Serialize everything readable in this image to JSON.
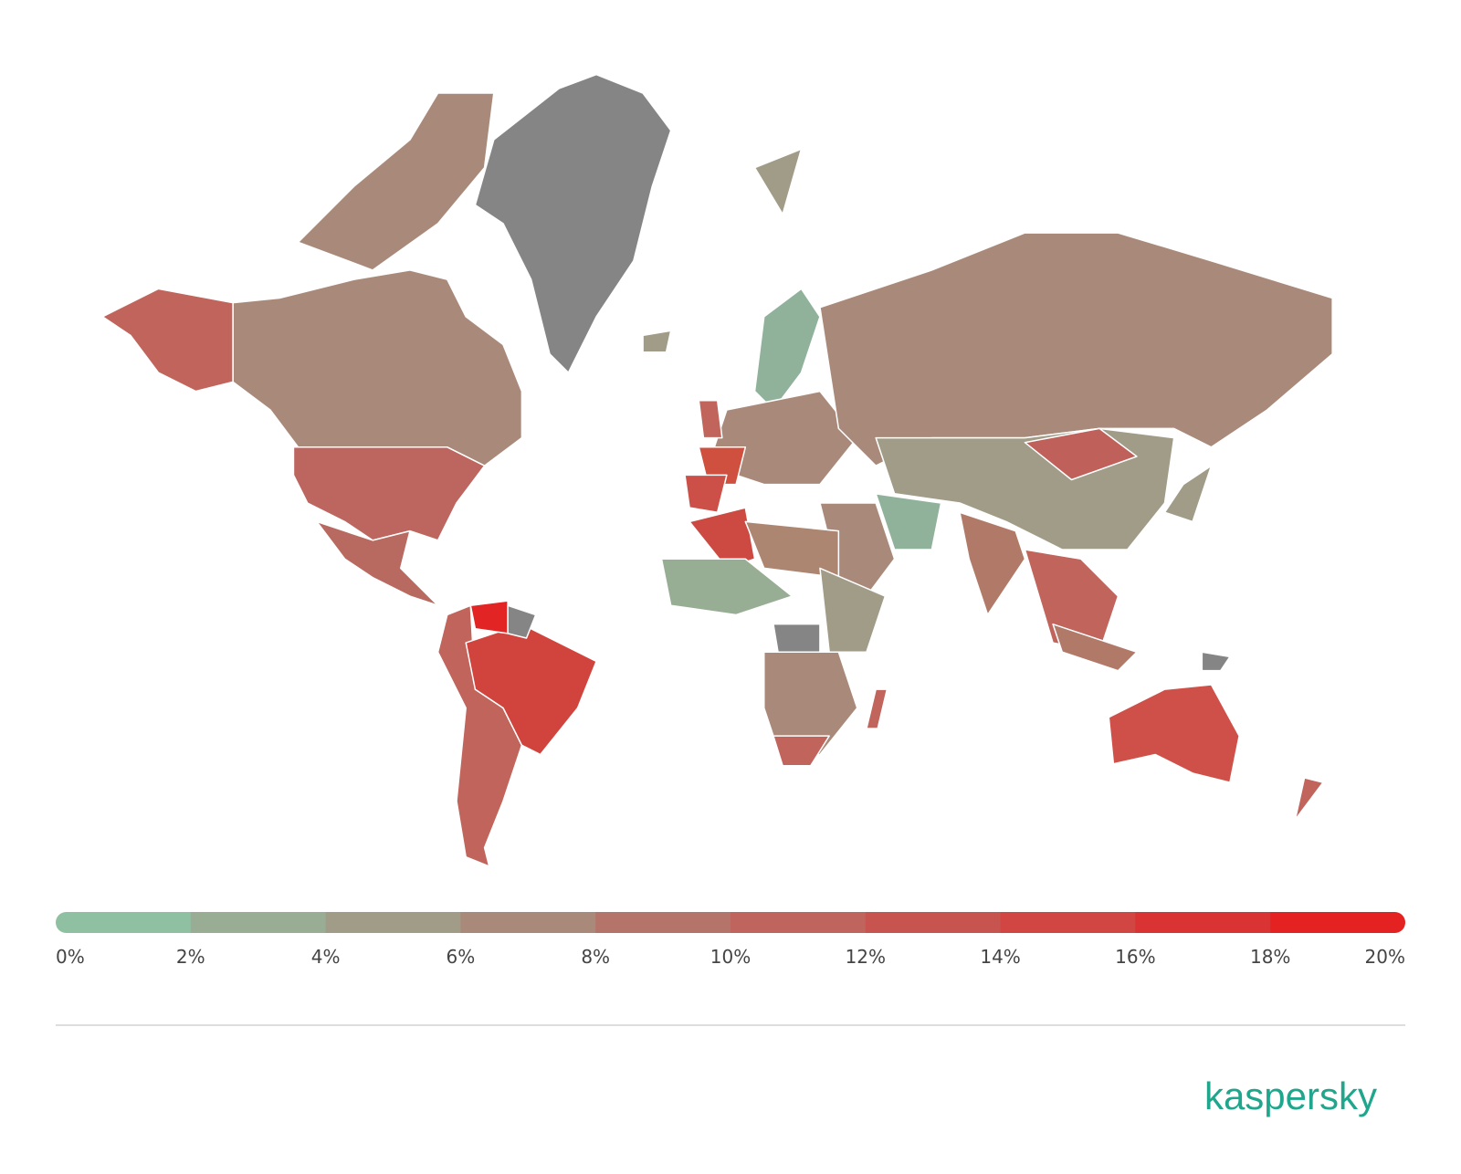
{
  "legend": {
    "range": [
      0,
      20
    ],
    "ticks": [
      {
        "value": 0,
        "label": "0%"
      },
      {
        "value": 2,
        "label": "2%"
      },
      {
        "value": 4,
        "label": "4%"
      },
      {
        "value": 6,
        "label": "6%"
      },
      {
        "value": 8,
        "label": "8%"
      },
      {
        "value": 10,
        "label": "10%"
      },
      {
        "value": 12,
        "label": "12%"
      },
      {
        "value": 14,
        "label": "14%"
      },
      {
        "value": 16,
        "label": "16%"
      },
      {
        "value": 18,
        "label": "18%"
      },
      {
        "value": 20,
        "label": "20%"
      }
    ],
    "colors": [
      "#90c0a2",
      "#98ad94",
      "#a19c88",
      "#a98a7a",
      "#b4746a",
      "#bf655d",
      "#c85450",
      "#d14542",
      "#da3333",
      "#e42222"
    ]
  },
  "logo": "kaspersky"
}
